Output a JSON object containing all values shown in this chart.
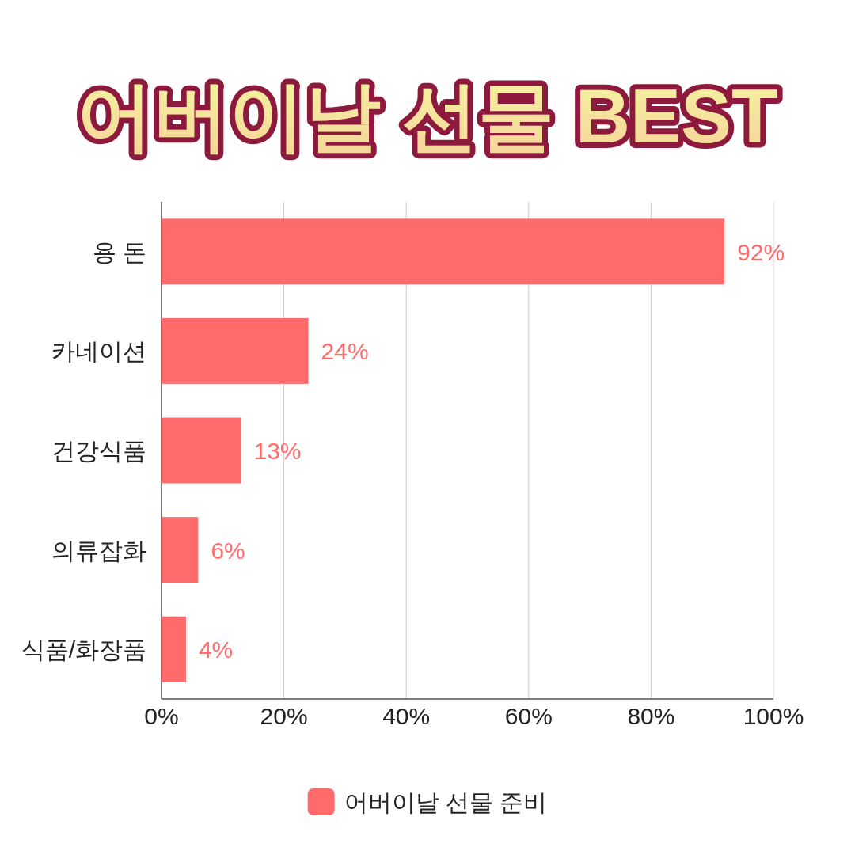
{
  "chart_data": {
    "type": "bar",
    "orientation": "horizontal",
    "title": "어버이날 선물 BEST",
    "categories": [
      "용 돈",
      "카네이션",
      "건강식품",
      "의류잡화",
      "식품/화장품"
    ],
    "series": [
      {
        "name": "어버이날 선물 준비",
        "color": "#ff6b6b",
        "values": [
          92,
          24,
          13,
          6,
          4
        ],
        "value_labels": [
          "92%",
          "24%",
          "13%",
          "6%",
          "4%"
        ]
      }
    ],
    "xlim": [
      0,
      100
    ],
    "xticks": [
      {
        "value": 0,
        "label": "0%"
      },
      {
        "value": 20,
        "label": "20%"
      },
      {
        "value": 40,
        "label": "40%"
      },
      {
        "value": 60,
        "label": "60%"
      },
      {
        "value": 80,
        "label": "80%"
      },
      {
        "value": 100,
        "label": "100%"
      }
    ],
    "grid": "x",
    "legend": "bottom"
  }
}
